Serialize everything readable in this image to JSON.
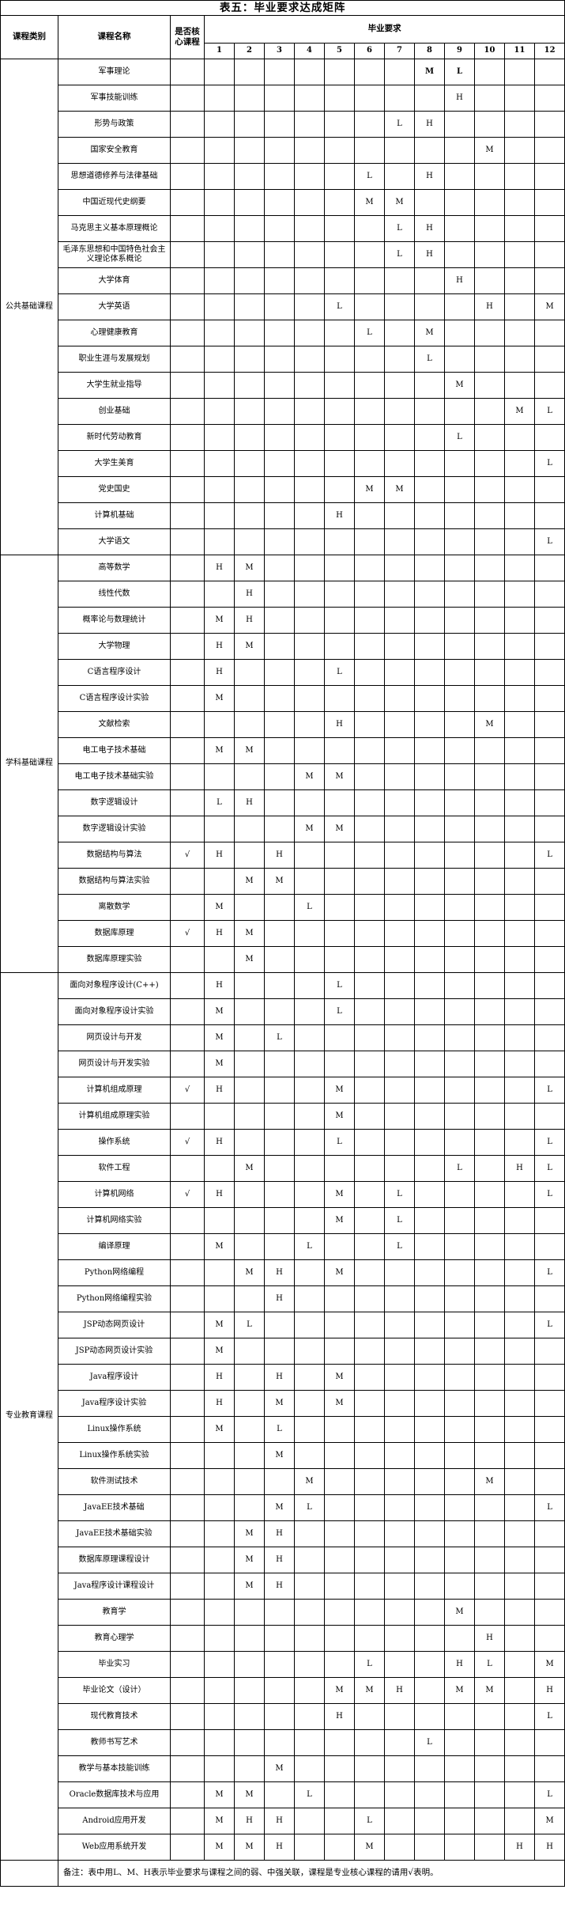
{
  "title": "表五：毕业要求达成矩阵",
  "table": {
    "headers": {
      "category": "课程类别",
      "course": "课程名称",
      "core": "是否核心课程",
      "requirement": "毕业要求"
    },
    "requirement_numbers": [
      "1",
      "2",
      "3",
      "4",
      "5",
      "6",
      "7",
      "8",
      "9",
      "10",
      "11",
      "12"
    ],
    "mark_levels": [
      "L",
      "M",
      "H"
    ],
    "core_symbol": "√",
    "sections": [
      {
        "category": "公共基础课程",
        "courses": [
          {
            "name": "军事理论",
            "core": "",
            "marks": {
              "8": "M",
              "9": "L"
            }
          },
          {
            "name": "军事技能训练",
            "core": "",
            "marks": {
              "9": "H"
            }
          },
          {
            "name": "形势与政策",
            "core": "",
            "marks": {
              "7": "L",
              "8": "H"
            }
          },
          {
            "name": "国家安全教育",
            "core": "",
            "marks": {
              "10": "M"
            }
          },
          {
            "name": "思想道德修养与法律基础",
            "core": "",
            "marks": {
              "6": "L",
              "8": "H"
            }
          },
          {
            "name": "中国近现代史纲要",
            "core": "",
            "marks": {
              "6": "M",
              "7": "M"
            }
          },
          {
            "name": "马克思主义基本原理概论",
            "core": "",
            "marks": {
              "7": "L",
              "8": "H"
            }
          },
          {
            "name": "毛泽东思想和中国特色社会主义理论体系概论",
            "core": "",
            "marks": {
              "7": "L",
              "8": "H"
            }
          },
          {
            "name": "大学体育",
            "core": "",
            "marks": {
              "9": "H"
            }
          },
          {
            "name": "大学英语",
            "core": "",
            "marks": {
              "5": "L",
              "10": "H",
              "12": "M"
            }
          },
          {
            "name": "心理健康教育",
            "core": "",
            "marks": {
              "6": "L",
              "8": "M"
            }
          },
          {
            "name": "职业生涯与发展规划",
            "core": "",
            "marks": {
              "8": "L"
            }
          },
          {
            "name": "大学生就业指导",
            "core": "",
            "marks": {
              "9": "M"
            }
          },
          {
            "name": "创业基础",
            "core": "",
            "marks": {
              "11": "M",
              "12": "L"
            }
          },
          {
            "name": "新时代劳动教育",
            "core": "",
            "marks": {
              "9": "L"
            }
          },
          {
            "name": "大学生美育",
            "core": "",
            "marks": {
              "12": "L"
            }
          },
          {
            "name": "党史国史",
            "core": "",
            "marks": {
              "6": "M",
              "7": "M"
            }
          },
          {
            "name": "计算机基础",
            "core": "",
            "marks": {
              "5": "H"
            }
          },
          {
            "name": "大学语文",
            "core": "",
            "marks": {
              "12": "L"
            }
          }
        ]
      },
      {
        "category": "学科基础课程",
        "courses": [
          {
            "name": "高等数学",
            "core": "",
            "marks": {
              "1": "H",
              "2": "M"
            }
          },
          {
            "name": "线性代数",
            "core": "",
            "marks": {
              "2": "H"
            }
          },
          {
            "name": "概率论与数理统计",
            "core": "",
            "marks": {
              "1": "M",
              "2": "H"
            }
          },
          {
            "name": "大学物理",
            "core": "",
            "marks": {
              "1": "H",
              "2": "M"
            }
          },
          {
            "name": "C语言程序设计",
            "core": "",
            "marks": {
              "1": "H",
              "5": "L"
            }
          },
          {
            "name": "C语言程序设计实验",
            "core": "",
            "marks": {
              "1": "M"
            }
          },
          {
            "name": "文献检索",
            "core": "",
            "marks": {
              "5": "H",
              "10": "M"
            }
          },
          {
            "name": "电工电子技术基础",
            "core": "",
            "marks": {
              "1": "M",
              "2": "M"
            }
          },
          {
            "name": "电工电子技术基础实验",
            "core": "",
            "marks": {
              "4": "M",
              "5": "M"
            }
          },
          {
            "name": "数字逻辑设计",
            "core": "",
            "marks": {
              "1": "L",
              "2": "H"
            }
          },
          {
            "name": "数字逻辑设计实验",
            "core": "",
            "marks": {
              "4": "M",
              "5": "M"
            }
          },
          {
            "name": "数据结构与算法",
            "core": "√",
            "marks": {
              "1": "H",
              "3": "H",
              "12": "L"
            }
          },
          {
            "name": "数据结构与算法实验",
            "core": "",
            "marks": {
              "2": "M",
              "3": "M"
            }
          },
          {
            "name": "离散数学",
            "core": "",
            "marks": {
              "1": "M",
              "4": "L"
            }
          },
          {
            "name": "数据库原理",
            "core": "√",
            "marks": {
              "1": "H",
              "2": "M"
            }
          },
          {
            "name": "数据库原理实验",
            "core": "",
            "marks": {
              "2": "M"
            }
          }
        ]
      },
      {
        "category": "专业教育课程",
        "courses": [
          {
            "name": "面向对象程序设计(C++)",
            "core": "",
            "marks": {
              "1": "H",
              "5": "L"
            }
          },
          {
            "name": "面向对象程序设计实验",
            "core": "",
            "marks": {
              "1": "M",
              "5": "L"
            }
          },
          {
            "name": "网页设计与开发",
            "core": "",
            "marks": {
              "1": "M",
              "3": "L"
            }
          },
          {
            "name": "网页设计与开发实验",
            "core": "",
            "marks": {
              "1": "M"
            }
          },
          {
            "name": "计算机组成原理",
            "core": "√",
            "marks": {
              "1": "H",
              "5": "M",
              "12": "L"
            }
          },
          {
            "name": "计算机组成原理实验",
            "core": "",
            "marks": {
              "5": "M"
            }
          },
          {
            "name": "操作系统",
            "core": "√",
            "marks": {
              "1": "H",
              "5": "L",
              "12": "L"
            }
          },
          {
            "name": "软件工程",
            "core": "",
            "marks": {
              "2": "M",
              "9": "L",
              "11": "H",
              "12": "L"
            }
          },
          {
            "name": "计算机网络",
            "core": "√",
            "marks": {
              "1": "H",
              "5": "M",
              "7": "L",
              "12": "L"
            }
          },
          {
            "name": "计算机网络实验",
            "core": "",
            "marks": {
              "5": "M",
              "7": "L"
            }
          },
          {
            "name": "编译原理",
            "core": "",
            "marks": {
              "1": "M",
              "4": "L",
              "7": "L"
            }
          },
          {
            "name": "Python网络编程",
            "core": "",
            "marks": {
              "2": "M",
              "3": "H",
              "5": "M",
              "12": "L"
            }
          },
          {
            "name": "Python网络编程实验",
            "core": "",
            "marks": {
              "3": "H"
            }
          },
          {
            "name": "JSP动态网页设计",
            "core": "",
            "marks": {
              "1": "M",
              "2": "L",
              "12": "L"
            }
          },
          {
            "name": "JSP动态网页设计实验",
            "core": "",
            "marks": {
              "1": "M"
            }
          },
          {
            "name": "Java程序设计",
            "core": "",
            "marks": {
              "1": "H",
              "3": "H",
              "5": "M"
            }
          },
          {
            "name": "Java程序设计实验",
            "core": "",
            "marks": {
              "1": "H",
              "3": "M",
              "5": "M"
            }
          },
          {
            "name": "Linux操作系统",
            "core": "",
            "marks": {
              "1": "M",
              "3": "L"
            }
          },
          {
            "name": "Linux操作系统实验",
            "core": "",
            "marks": {
              "3": "M"
            }
          },
          {
            "name": "软件测试技术",
            "core": "",
            "marks": {
              "4": "M",
              "10": "M"
            }
          },
          {
            "name": "JavaEE技术基础",
            "core": "",
            "marks": {
              "3": "M",
              "4": "L",
              "12": "L"
            }
          },
          {
            "name": "JavaEE技术基础实验",
            "core": "",
            "marks": {
              "2": "M",
              "3": "H"
            }
          },
          {
            "name": "数据库原理课程设计",
            "core": "",
            "marks": {
              "2": "M",
              "3": "H"
            }
          },
          {
            "name": "Java程序设计课程设计",
            "core": "",
            "marks": {
              "2": "M",
              "3": "H"
            }
          },
          {
            "name": "教育学",
            "core": "",
            "marks": {
              "9": "M"
            }
          },
          {
            "name": "教育心理学",
            "core": "",
            "marks": {
              "10": "H"
            }
          },
          {
            "name": "毕业实习",
            "core": "",
            "marks": {
              "6": "L",
              "9": "H",
              "10": "L",
              "12": "M"
            }
          },
          {
            "name": "毕业论文（设计）",
            "core": "",
            "marks": {
              "5": "M",
              "6": "M",
              "7": "H",
              "9": "M",
              "10": "M",
              "12": "H"
            }
          },
          {
            "name": "现代教育技术",
            "core": "",
            "marks": {
              "5": "H",
              "12": "L"
            }
          },
          {
            "name": "教师书写艺术",
            "core": "",
            "marks": {
              "8": "L"
            }
          },
          {
            "name": "教学与基本技能训练",
            "core": "",
            "marks": {
              "3": "M"
            }
          },
          {
            "name": "Oracle数据库技术与应用",
            "core": "",
            "marks": {
              "1": "M",
              "2": "M",
              "4": "L",
              "12": "L"
            }
          },
          {
            "name": "Android应用开发",
            "core": "",
            "marks": {
              "1": "M",
              "2": "H",
              "3": "H",
              "6": "L",
              "12": "M"
            }
          },
          {
            "name": "Web应用系统开发",
            "core": "",
            "marks": {
              "1": "M",
              "2": "M",
              "3": "H",
              "6": "M",
              "11": "H",
              "12": "H"
            }
          }
        ]
      }
    ],
    "note": "备注：表中用L、M、H表示毕业要求与课程之间的弱、中强关联，课程是专业核心课程的请用√表明。"
  }
}
